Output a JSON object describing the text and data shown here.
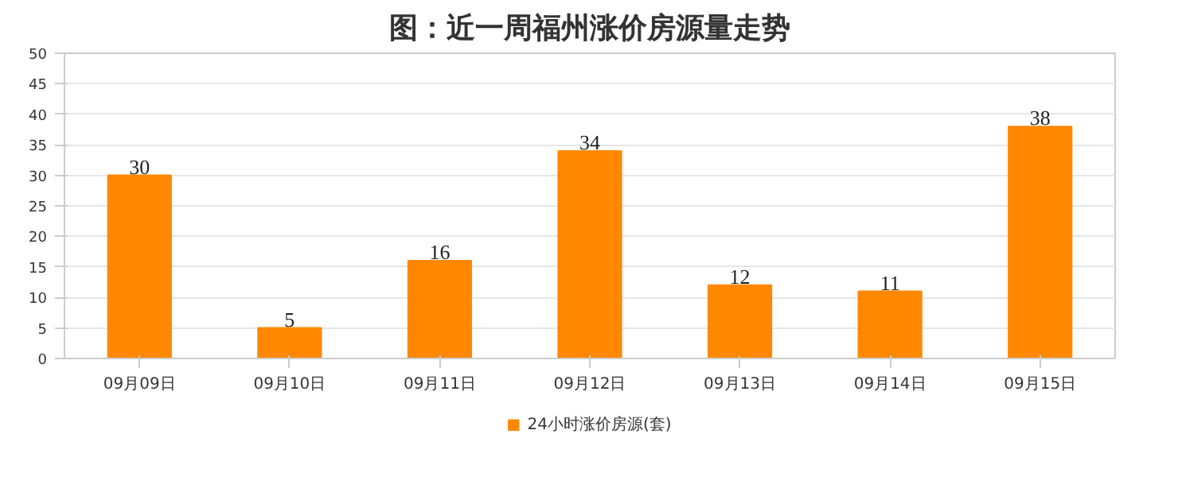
{
  "chart_data": {
    "type": "bar",
    "title": "图：近一周福州涨价房源量走势",
    "categories": [
      "09月09日",
      "09月10日",
      "09月11日",
      "09月12日",
      "09月13日",
      "09月14日",
      "09月15日"
    ],
    "series": [
      {
        "name": "24小时涨价房源(套)",
        "color": "#ff8800",
        "values": [
          30,
          5,
          16,
          34,
          12,
          11,
          38
        ]
      }
    ],
    "ylim": [
      0,
      50
    ],
    "yticks": [
      0,
      5,
      10,
      15,
      20,
      25,
      30,
      35,
      40,
      45,
      50
    ],
    "grid": "y",
    "legend": "bottom",
    "data_labels": true
  }
}
